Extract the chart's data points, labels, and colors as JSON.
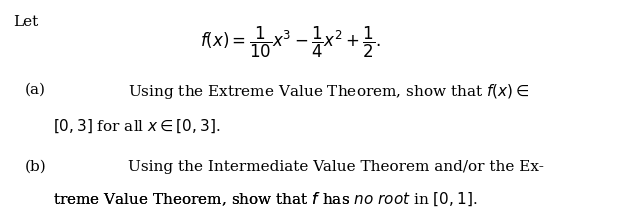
{
  "background_color": "#ffffff",
  "text_color": "#000000",
  "fig_width": 6.21,
  "fig_height": 2.1,
  "dpi": 100,
  "let_text": "Let",
  "formula": "$f(x) = \\dfrac{1}{10}x^3 - \\dfrac{1}{4}x^2 + \\dfrac{1}{2}.$",
  "part_a_label": "(a)",
  "part_a_line1": "Using the Extreme Value Theorem, show that $f(x) \\in$",
  "part_a_line2": "$[0, 3]$ for all $x \\in [0, 3]$.",
  "part_b_label": "(b)",
  "part_b_line1": "Using the Intermediate Value Theorem and/or the Ex-",
  "part_b_line2_normal": "treme Value Theorem, show that $f$ has ",
  "part_b_line2_italic": "no root",
  "part_b_line2_end": " in $[0, 1]$.",
  "font_size": 11,
  "font_family": "serif"
}
